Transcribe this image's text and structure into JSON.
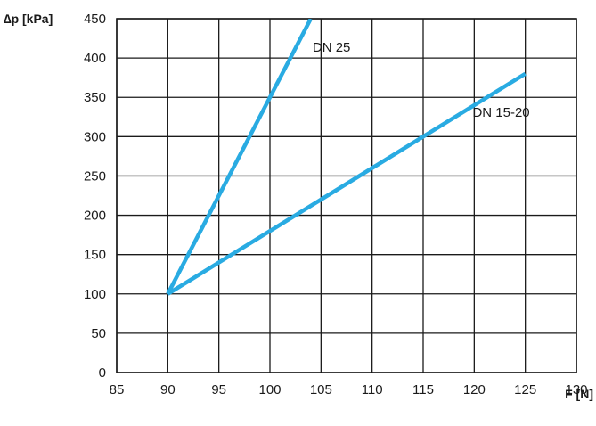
{
  "chart_data": {
    "type": "line",
    "xlabel": "F [N]",
    "ylabel": "∆p [kPa]",
    "xlim": [
      85,
      130
    ],
    "ylim": [
      0,
      450
    ],
    "x_ticks": [
      85,
      90,
      95,
      100,
      105,
      110,
      115,
      120,
      125,
      130
    ],
    "y_ticks": [
      0,
      50,
      100,
      150,
      200,
      250,
      300,
      350,
      400,
      450
    ],
    "grid": true,
    "line_color": "#29abe2",
    "series": [
      {
        "name": "DN 25",
        "x": [
          90,
          104
        ],
        "y": [
          100,
          450
        ]
      },
      {
        "name": "DN 15-20",
        "x": [
          90,
          125
        ],
        "y": [
          100,
          380
        ]
      }
    ]
  }
}
